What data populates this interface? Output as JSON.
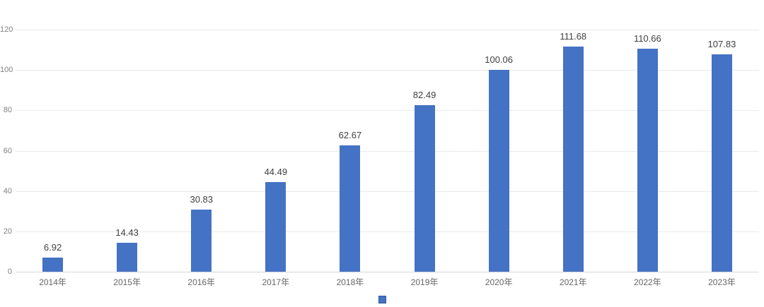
{
  "chart_data": {
    "type": "bar",
    "title": "",
    "categories": [
      "2014年",
      "2015年",
      "2016年",
      "2017年",
      "2018年",
      "2019年",
      "2020年",
      "2021年",
      "2022年",
      "2023年"
    ],
    "values": [
      6.92,
      14.43,
      30.83,
      44.49,
      62.67,
      82.49,
      100.06,
      111.68,
      110.66,
      107.83
    ],
    "value_labels": [
      "6.92",
      "14.43",
      "30.83",
      "44.49",
      "62.67",
      "82.49",
      "100.06",
      "111.68",
      "110.66",
      "107.83"
    ],
    "xlabel": "",
    "ylabel": "",
    "ylim": [
      0,
      120
    ],
    "yticks": [
      0,
      20,
      40,
      60,
      80,
      100,
      120
    ],
    "grid": true,
    "legend": {
      "position": "bottom-center",
      "entries": [
        {
          "label": "",
          "swatch": "blue-square",
          "color": "#4472c4",
          "border_color": "#2f5597"
        }
      ]
    },
    "colors": {
      "bar": "#4472c4",
      "value_label": "#404040",
      "y_tick_label": "#7f7f7f",
      "x_tick_label": "#666666",
      "gridline": "#e9e9e9",
      "axis_line": "#d6d6d6",
      "background": "#ffffff"
    }
  }
}
